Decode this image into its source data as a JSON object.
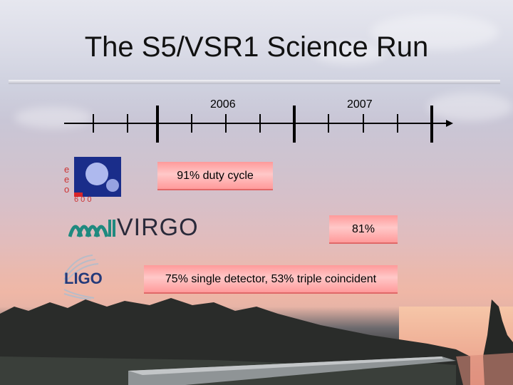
{
  "slide": {
    "title": "The S5/VSR1 Science Run"
  },
  "timeline": {
    "years": [
      "2006",
      "2007"
    ]
  },
  "detectors": [
    {
      "name": "GEO600",
      "logo_icon": "geo600-logo-icon",
      "logo_text": "geo",
      "logo_subtext": "6 0 0",
      "bar_label": "91% duty cycle"
    },
    {
      "name": "VIRGO",
      "logo_icon": "virgo-logo-icon",
      "logo_text": "VIRGO",
      "bar_label": "81%"
    },
    {
      "name": "LIGO",
      "logo_icon": "ligo-logo-icon",
      "logo_text": "LIGO",
      "bar_label": "75% single detector, 53% triple coincident"
    }
  ],
  "colors": {
    "bar_fill": "#ffb3b3",
    "bar_edge": "#e06868",
    "timeline_ink": "#000000"
  }
}
